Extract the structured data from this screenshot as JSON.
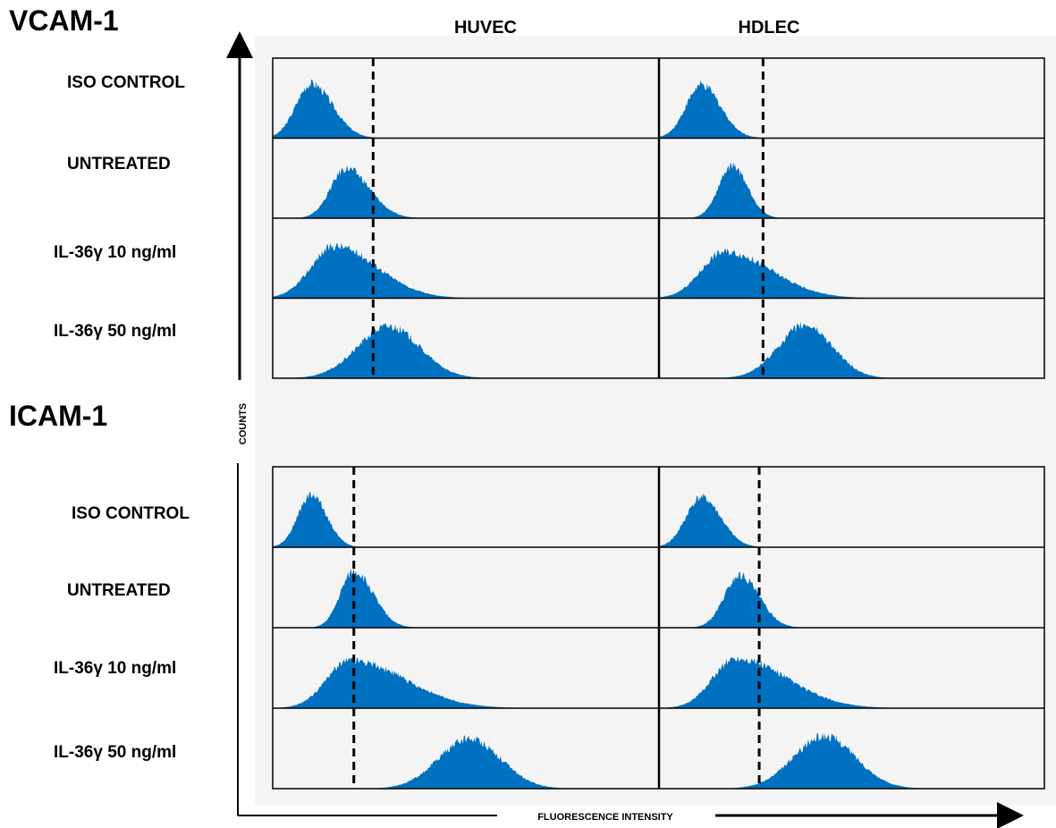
{
  "columns": [
    "HUVEC",
    "HDLEC"
  ],
  "axis": {
    "x_label": "FLUORESCENCE INTENSITY",
    "y_label": "COUNTS"
  },
  "colors": {
    "fill": "#0070c0",
    "frame": "#000000",
    "plot_bg": "#f4f4f4"
  },
  "chart_data": [
    {
      "type": "area",
      "title": "VCAM-1",
      "rows": [
        "ISO CONTROL",
        "UNTREATED",
        "IL-36γ 10 ng/ml",
        "IL-36γ 50 ng/ml"
      ],
      "xlim": [
        0,
        100
      ],
      "gate": {
        "HUVEC": 26,
        "HDLEC": 27
      },
      "histograms": {
        "HUVEC": [
          {
            "row": "ISO CONTROL",
            "peak": 10,
            "sigma_left": 4,
            "sigma_right": 5.5,
            "height": 0.68
          },
          {
            "row": "UNTREATED",
            "peak": 19,
            "sigma_left": 4,
            "sigma_right": 6,
            "height": 0.62
          },
          {
            "row": "IL-36γ 10 ng/ml",
            "peak": 16,
            "sigma_left": 6,
            "sigma_right": 11,
            "height": 0.65
          },
          {
            "row": "IL-36γ 50 ng/ml",
            "peak": 30,
            "sigma_left": 8,
            "sigma_right": 8,
            "height": 0.65
          }
        ],
        "HDLEC": [
          {
            "row": "ISO CONTROL",
            "peak": 11,
            "sigma_left": 4,
            "sigma_right": 5,
            "height": 0.66
          },
          {
            "row": "UNTREATED",
            "peak": 19,
            "sigma_left": 3.5,
            "sigma_right": 4,
            "height": 0.65
          },
          {
            "row": "IL-36γ 10 ng/ml",
            "peak": 17,
            "sigma_left": 6,
            "sigma_right": 12,
            "height": 0.58
          },
          {
            "row": "IL-36γ 50 ng/ml",
            "peak": 38,
            "sigma_left": 7,
            "sigma_right": 7,
            "height": 0.66
          }
        ]
      }
    },
    {
      "type": "area",
      "title": "ICAM-1",
      "rows": [
        "ISO CONTROL",
        "UNTREATED",
        "IL-36γ 10 ng/ml",
        "IL-36γ 50 ng/ml"
      ],
      "xlim": [
        0,
        100
      ],
      "gate": {
        "HUVEC": 21,
        "HDLEC": 26
      },
      "histograms": {
        "HUVEC": [
          {
            "row": "ISO CONTROL",
            "peak": 10,
            "sigma_left": 3.5,
            "sigma_right": 4,
            "height": 0.65
          },
          {
            "row": "UNTREATED",
            "peak": 21,
            "sigma_left": 3.5,
            "sigma_right": 5,
            "height": 0.7
          },
          {
            "row": "IL-36γ 10 ng/ml",
            "peak": 20,
            "sigma_left": 6,
            "sigma_right": 14,
            "height": 0.6
          },
          {
            "row": "IL-36γ 50 ng/ml",
            "peak": 51,
            "sigma_left": 8,
            "sigma_right": 8,
            "height": 0.62
          }
        ],
        "HDLEC": [
          {
            "row": "ISO CONTROL",
            "peak": 11,
            "sigma_left": 4,
            "sigma_right": 5,
            "height": 0.62
          },
          {
            "row": "UNTREATED",
            "peak": 21,
            "sigma_left": 4,
            "sigma_right": 5,
            "height": 0.65
          },
          {
            "row": "IL-36γ 10 ng/ml",
            "peak": 20,
            "sigma_left": 6,
            "sigma_right": 13,
            "height": 0.62
          },
          {
            "row": "IL-36γ 50 ng/ml",
            "peak": 43,
            "sigma_left": 8,
            "sigma_right": 8,
            "height": 0.65
          }
        ]
      }
    }
  ]
}
